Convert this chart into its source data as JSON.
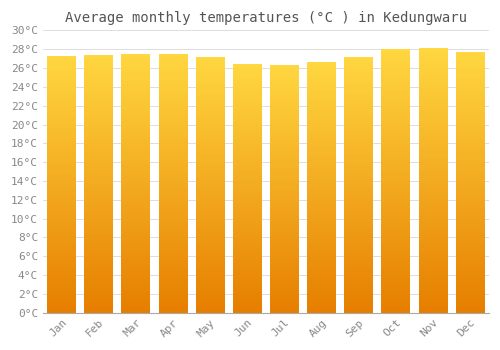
{
  "title": "Average monthly temperatures (°C ) in Kedungwaru",
  "months": [
    "Jan",
    "Feb",
    "Mar",
    "Apr",
    "May",
    "Jun",
    "Jul",
    "Aug",
    "Sep",
    "Oct",
    "Nov",
    "Dec"
  ],
  "temperatures": [
    27.3,
    27.4,
    27.5,
    27.5,
    27.2,
    26.4,
    26.3,
    26.6,
    27.2,
    28.0,
    28.1,
    27.7
  ],
  "ylim": [
    0,
    30
  ],
  "yticks": [
    0,
    2,
    4,
    6,
    8,
    10,
    12,
    14,
    16,
    18,
    20,
    22,
    24,
    26,
    28,
    30
  ],
  "bar_color_bottom": "#E67E00",
  "bar_color_top": "#FFD740",
  "background_color": "#FFFFFF",
  "plot_bg_color": "#FFFFFF",
  "grid_color": "#DDDDDD",
  "title_fontsize": 10,
  "tick_fontsize": 8,
  "title_color": "#555555",
  "tick_color": "#888888"
}
